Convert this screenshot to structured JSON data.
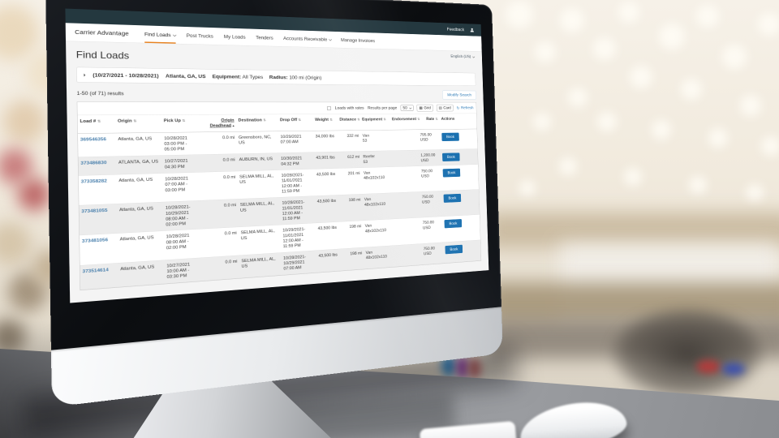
{
  "colors": {
    "topbar_teal": "#24383f",
    "accent_orange": "#e8821e",
    "link_blue": "#2e7cb8",
    "book_button_blue": "#1a70b0"
  },
  "topbar": {
    "feedback_label": "Feedback"
  },
  "nav": {
    "brand": "Carrier Advantage",
    "items": [
      {
        "label": "Find Loads",
        "caret": true,
        "active": true
      },
      {
        "label": "Post Trucks",
        "caret": false,
        "active": false
      },
      {
        "label": "My Loads",
        "caret": false,
        "active": false
      },
      {
        "label": "Tenders",
        "caret": false,
        "active": false
      },
      {
        "label": "Accounts Receivable",
        "caret": true,
        "active": false
      },
      {
        "label": "Manage Invoices",
        "caret": false,
        "active": false
      }
    ]
  },
  "page": {
    "title": "Find Loads",
    "language_selector": "English (US)",
    "search_summary": {
      "chevron": "›",
      "date_range": "(10/27/2021 - 10/28/2021)",
      "origin": "Atlanta, GA, US",
      "equipment_label": "Equipment:",
      "equipment_value": "All Types",
      "radius_label": "Radius:",
      "radius_value": "100 mi (Origin)"
    },
    "results_text": "1-50 (of 71) results",
    "modify_search_label": "Modify Search"
  },
  "toolbar": {
    "loads_with_rates_label": "Loads with rates",
    "checkbox_checked": false,
    "results_per_page_label": "Results per page",
    "results_per_page_value": "50",
    "grid_label": "Grid",
    "card_label": "Card",
    "refresh_label": "Refresh",
    "grid_icon": "▦",
    "card_icon": "▤",
    "refresh_icon": "↻"
  },
  "table": {
    "columns": [
      "Load #",
      "Origin",
      "Pick Up",
      "Origin Deadhead",
      "Destination",
      "Drop Off",
      "Weight",
      "Distance",
      "Equipment",
      "Endorsement",
      "Rate",
      "Actions"
    ],
    "sorted_column": "Origin Deadhead",
    "sort_direction": "asc",
    "rows": [
      {
        "load_number": "369546356",
        "origin": "Atlanta, GA, US",
        "pickup": [
          "10/28/2021",
          "03:00 PM -",
          "05:00 PM"
        ],
        "origin_deadhead": "0.0 mi",
        "destination": "Greensboro, NC, US",
        "dropoff": [
          "10/29/2021",
          "07:00 AM"
        ],
        "weight": "34,000 lbs",
        "distance": "332 mi",
        "equipment": [
          "Van",
          "53"
        ],
        "endorsement": "",
        "rate": [
          "795.00",
          "USD"
        ],
        "action": "Book"
      },
      {
        "load_number": "373486830",
        "origin": "ATLANTA, GA, US",
        "pickup": [
          "10/27/2021",
          "04:30 PM"
        ],
        "origin_deadhead": "0.0 mi",
        "destination": "AUBURN, IN, US",
        "dropoff": [
          "10/30/2021",
          "04:32 PM"
        ],
        "weight": "43,901 lbs",
        "distance": "612 mi",
        "equipment": [
          "Reefer",
          "53"
        ],
        "endorsement": "",
        "rate": [
          "1,200.00",
          "USD"
        ],
        "action": "Book"
      },
      {
        "load_number": "373358282",
        "origin": "Atlanta, GA, US",
        "pickup": [
          "10/28/2021",
          "07:00 AM -",
          "03:00 PM"
        ],
        "origin_deadhead": "0.0 mi",
        "destination": "SELMA MILL, AL, US",
        "dropoff": [
          "10/28/2021-",
          "11/01/2021",
          "12:00 AM -",
          "11:59 PM"
        ],
        "weight": "43,500 lbs",
        "distance": "201 mi",
        "equipment": [
          "Van",
          "48x102x110"
        ],
        "endorsement": "",
        "rate": [
          "750.00",
          "USD"
        ],
        "action": "Book"
      },
      {
        "load_number": "373481055",
        "origin": "Atlanta, GA, US",
        "pickup": [
          "10/28/2021-",
          "10/29/2021",
          "08:00 AM -",
          "02:00 PM"
        ],
        "origin_deadhead": "0.0 mi",
        "destination": "SELMA MILL, AL, US",
        "dropoff": [
          "10/28/2021-",
          "11/01/2021",
          "12:00 AM -",
          "11:59 PM"
        ],
        "weight": "43,500 lbs",
        "distance": "198 mi",
        "equipment": [
          "Van",
          "48x102x110"
        ],
        "endorsement": "",
        "rate": [
          "750.00",
          "USD"
        ],
        "action": "Book"
      },
      {
        "load_number": "373481056",
        "origin": "Atlanta, GA, US",
        "pickup": [
          "10/28/2021",
          "08:00 AM -",
          "02:00 PM"
        ],
        "origin_deadhead": "0.0 mi",
        "destination": "SELMA MILL, AL, US",
        "dropoff": [
          "10/29/2021-",
          "11/01/2021",
          "12:00 AM -",
          "11:59 PM"
        ],
        "weight": "43,500 lbs",
        "distance": "198 mi",
        "equipment": [
          "Van",
          "48x102x110"
        ],
        "endorsement": "",
        "rate": [
          "750.00",
          "USD"
        ],
        "action": "Book"
      },
      {
        "load_number": "373514614",
        "origin": "Atlanta, GA, US",
        "pickup": [
          "10/27/2021",
          "10:00 AM -",
          "03:30 PM"
        ],
        "origin_deadhead": "0.0 mi",
        "destination": "SELMA MILL, AL, US",
        "dropoff": [
          "10/28/2021-",
          "10/29/2021",
          "07:00 AM"
        ],
        "weight": "43,500 lbs",
        "distance": "198 mi",
        "equipment": [
          "Van",
          "48x102x110"
        ],
        "endorsement": "",
        "rate": [
          "750.00",
          "USD"
        ],
        "action": "Book"
      }
    ]
  }
}
